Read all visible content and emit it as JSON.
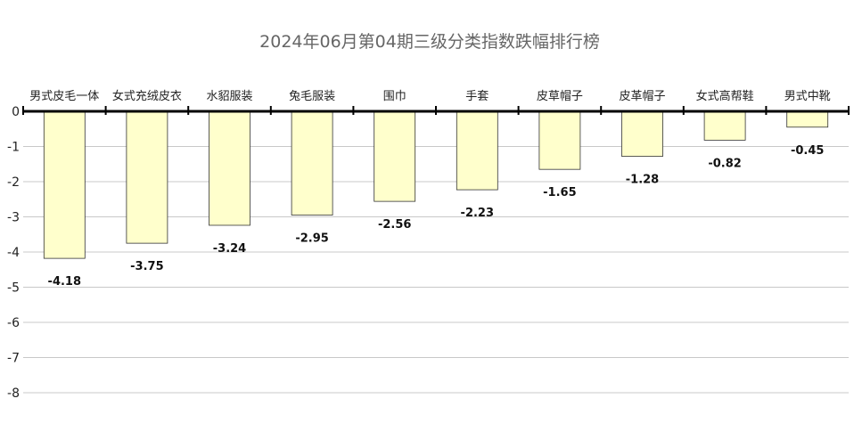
{
  "chart_data": {
    "type": "bar",
    "title": "2024年06月第04期三级分类指数跌幅排行榜",
    "categories": [
      "男式皮毛一体",
      "女式充绒皮衣",
      "水貂服装",
      "兔毛服装",
      "围巾",
      "手套",
      "皮草帽子",
      "皮革帽子",
      "女式高帮鞋",
      "男式中靴"
    ],
    "values": [
      -4.18,
      -3.75,
      -3.24,
      -2.95,
      -2.56,
      -2.23,
      -1.65,
      -1.28,
      -0.82,
      -0.45
    ],
    "value_labels": [
      "-4.18",
      "-3.75",
      "-3.24",
      "-2.95",
      "-2.56",
      "-2.23",
      "-1.65",
      "-1.28",
      "-0.82",
      "-0.45"
    ],
    "y_ticks": [
      0,
      -1,
      -2,
      -3,
      -4,
      -5,
      -6,
      -7,
      -8
    ],
    "y_tick_labels": [
      "0",
      "-1",
      "-2",
      "-3",
      "-4",
      "-5",
      "-6",
      "-7",
      "-8"
    ],
    "ylim": [
      -8,
      0
    ],
    "xlabel": "",
    "ylabel": "",
    "grid": true,
    "legend": "none",
    "colors": {
      "bar_fill": "#ffffcc",
      "bar_stroke": "#333333",
      "grid": "#c8c8c8",
      "title": "#666666"
    }
  }
}
